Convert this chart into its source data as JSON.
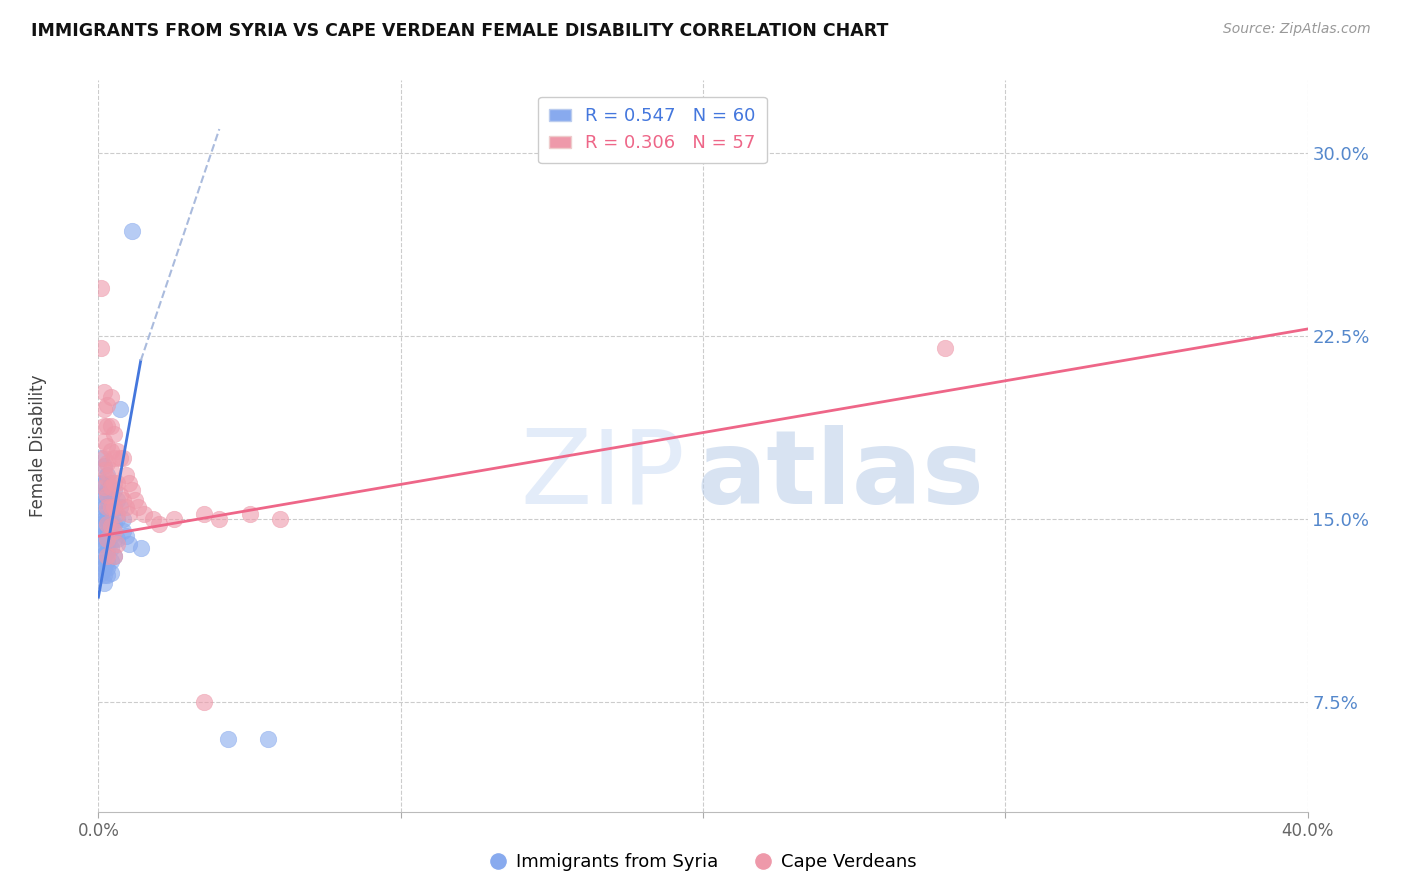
{
  "title": "IMMIGRANTS FROM SYRIA VS CAPE VERDEAN FEMALE DISABILITY CORRELATION CHART",
  "source": "Source: ZipAtlas.com",
  "ylabel": "Female Disability",
  "yticks": [
    0.075,
    0.15,
    0.225,
    0.3
  ],
  "ytick_labels": [
    "7.5%",
    "15.0%",
    "22.5%",
    "30.0%"
  ],
  "xlim": [
    0.0,
    0.4
  ],
  "ylim": [
    0.03,
    0.33
  ],
  "legend_r1": "R = 0.547",
  "legend_n1": "N = 60",
  "legend_r2": "R = 0.306",
  "legend_n2": "N = 57",
  "color_syria": "#88aaee",
  "color_cape": "#ee99aa",
  "color_syria_line": "#4477dd",
  "color_cape_line": "#ee6688",
  "syria_scatter": [
    [
      0.001,
      0.175
    ],
    [
      0.001,
      0.165
    ],
    [
      0.001,
      0.158
    ],
    [
      0.001,
      0.152
    ],
    [
      0.001,
      0.148
    ],
    [
      0.001,
      0.143
    ],
    [
      0.001,
      0.14
    ],
    [
      0.001,
      0.135
    ],
    [
      0.001,
      0.132
    ],
    [
      0.001,
      0.128
    ],
    [
      0.002,
      0.172
    ],
    [
      0.002,
      0.165
    ],
    [
      0.002,
      0.16
    ],
    [
      0.002,
      0.155
    ],
    [
      0.002,
      0.15
    ],
    [
      0.002,
      0.147
    ],
    [
      0.002,
      0.143
    ],
    [
      0.002,
      0.14
    ],
    [
      0.002,
      0.135
    ],
    [
      0.002,
      0.13
    ],
    [
      0.002,
      0.127
    ],
    [
      0.002,
      0.124
    ],
    [
      0.003,
      0.168
    ],
    [
      0.003,
      0.162
    ],
    [
      0.003,
      0.158
    ],
    [
      0.003,
      0.153
    ],
    [
      0.003,
      0.15
    ],
    [
      0.003,
      0.147
    ],
    [
      0.003,
      0.143
    ],
    [
      0.003,
      0.14
    ],
    [
      0.003,
      0.137
    ],
    [
      0.003,
      0.133
    ],
    [
      0.003,
      0.13
    ],
    [
      0.003,
      0.127
    ],
    [
      0.004,
      0.165
    ],
    [
      0.004,
      0.158
    ],
    [
      0.004,
      0.153
    ],
    [
      0.004,
      0.148
    ],
    [
      0.004,
      0.143
    ],
    [
      0.004,
      0.138
    ],
    [
      0.004,
      0.133
    ],
    [
      0.004,
      0.128
    ],
    [
      0.005,
      0.162
    ],
    [
      0.005,
      0.155
    ],
    [
      0.005,
      0.148
    ],
    [
      0.005,
      0.142
    ],
    [
      0.005,
      0.135
    ],
    [
      0.006,
      0.158
    ],
    [
      0.006,
      0.15
    ],
    [
      0.006,
      0.142
    ],
    [
      0.007,
      0.195
    ],
    [
      0.007,
      0.155
    ],
    [
      0.008,
      0.15
    ],
    [
      0.008,
      0.145
    ],
    [
      0.009,
      0.143
    ],
    [
      0.01,
      0.14
    ],
    [
      0.011,
      0.268
    ],
    [
      0.014,
      0.138
    ],
    [
      0.056,
      0.06
    ],
    [
      0.043,
      0.06
    ]
  ],
  "cape_scatter": [
    [
      0.001,
      0.245
    ],
    [
      0.001,
      0.22
    ],
    [
      0.002,
      0.202
    ],
    [
      0.002,
      0.195
    ],
    [
      0.002,
      0.188
    ],
    [
      0.002,
      0.182
    ],
    [
      0.002,
      0.175
    ],
    [
      0.002,
      0.17
    ],
    [
      0.002,
      0.163
    ],
    [
      0.003,
      0.197
    ],
    [
      0.003,
      0.188
    ],
    [
      0.003,
      0.18
    ],
    [
      0.003,
      0.173
    ],
    [
      0.003,
      0.167
    ],
    [
      0.003,
      0.16
    ],
    [
      0.003,
      0.155
    ],
    [
      0.003,
      0.148
    ],
    [
      0.003,
      0.142
    ],
    [
      0.003,
      0.135
    ],
    [
      0.004,
      0.2
    ],
    [
      0.004,
      0.188
    ],
    [
      0.004,
      0.178
    ],
    [
      0.004,
      0.17
    ],
    [
      0.004,
      0.163
    ],
    [
      0.004,
      0.155
    ],
    [
      0.004,
      0.147
    ],
    [
      0.005,
      0.185
    ],
    [
      0.005,
      0.175
    ],
    [
      0.005,
      0.165
    ],
    [
      0.005,
      0.155
    ],
    [
      0.005,
      0.145
    ],
    [
      0.005,
      0.135
    ],
    [
      0.006,
      0.178
    ],
    [
      0.006,
      0.165
    ],
    [
      0.006,
      0.152
    ],
    [
      0.006,
      0.14
    ],
    [
      0.007,
      0.175
    ],
    [
      0.007,
      0.16
    ],
    [
      0.008,
      0.175
    ],
    [
      0.008,
      0.158
    ],
    [
      0.009,
      0.168
    ],
    [
      0.009,
      0.155
    ],
    [
      0.01,
      0.165
    ],
    [
      0.01,
      0.152
    ],
    [
      0.011,
      0.162
    ],
    [
      0.012,
      0.158
    ],
    [
      0.013,
      0.155
    ],
    [
      0.015,
      0.152
    ],
    [
      0.018,
      0.15
    ],
    [
      0.02,
      0.148
    ],
    [
      0.025,
      0.15
    ],
    [
      0.035,
      0.152
    ],
    [
      0.04,
      0.15
    ],
    [
      0.05,
      0.152
    ],
    [
      0.06,
      0.15
    ],
    [
      0.28,
      0.22
    ],
    [
      0.035,
      0.075
    ]
  ],
  "syria_trendline_solid": [
    [
      0.0,
      0.118
    ],
    [
      0.014,
      0.215
    ]
  ],
  "syria_trendline_dashed": [
    [
      0.014,
      0.215
    ],
    [
      0.04,
      0.31
    ]
  ],
  "cape_trendline": [
    [
      0.0,
      0.143
    ],
    [
      0.4,
      0.228
    ]
  ]
}
